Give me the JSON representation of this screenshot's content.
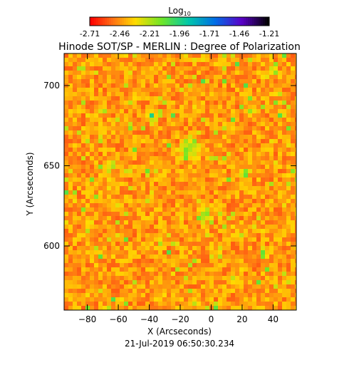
{
  "chart_data": {
    "type": "heatmap",
    "title": "Hinode SOT/SP - MERLIN : Degree of Polarization",
    "colorbar": {
      "label_base": "Log",
      "label_sub": "10",
      "ticks": [
        "-2.71",
        "-2.46",
        "-2.21",
        "-1.96",
        "-1.71",
        "-1.46",
        "-1.21"
      ],
      "range": [
        -2.71,
        -1.21
      ],
      "colormap": "rainbow (red-yellow-green-cyan-blue-purple-black)"
    },
    "x_axis": {
      "label": "X (Arcseconds)",
      "range": [
        -95,
        55
      ],
      "ticks": [
        -80,
        -60,
        -40,
        -20,
        0,
        20,
        40
      ]
    },
    "y_axis": {
      "label": "Y (Arcseconds)",
      "range": [
        560,
        720
      ],
      "ticks": [
        600,
        650,
        700
      ]
    },
    "date": "21-Jul-2019 06:50:30.234",
    "dominant_value_range": [
      -2.71,
      -2.3
    ],
    "background_color": "#ff6a1a"
  }
}
